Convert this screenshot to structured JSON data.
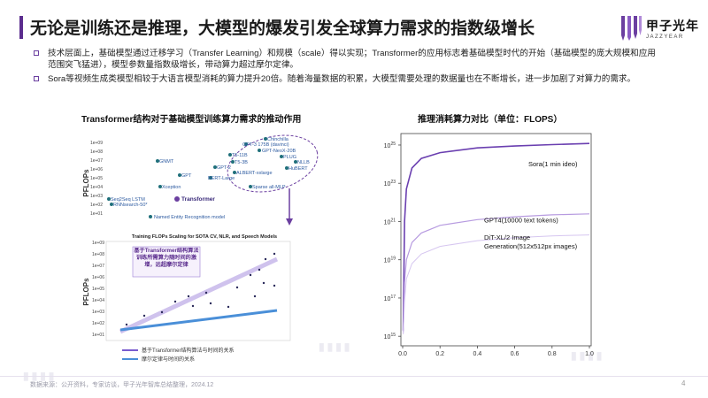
{
  "slide": {
    "title": "无论是训练还是推理，大模型的爆发引发全球算力需求的指数级增长",
    "logo_cn": "甲子光年",
    "logo_en": "JAZZYEAR",
    "bullets": [
      "技术层面上，基础模型通过迁移学习（Transfer Learning）和规模（scale）得以实现；Transformer的应用标志着基础模型时代的开始（基础模型的庞大规模和应用范围突飞猛进），模型参数量指数级增长，带动算力超过摩尔定律。",
      "Sora等视频生成类模型相较于大语言模型消耗的算力提升20倍。随着海量数据的积累，大模型需要处理的数据量也在不断增长，进一步加剧了对算力的需求。"
    ],
    "footer": "数据来源：公开资料，专家访谈，甲子光年智库总结整理，2024.12",
    "page_number": "4",
    "colors": {
      "accent": "#5b2d8e",
      "sora": "#6a3fb0",
      "gpt4": "#b79be0",
      "dit": "#d6c6f0",
      "transformer_trend": "#7a5ccf",
      "moore": "#4a8fd8"
    }
  },
  "left_chart": {
    "title": "Transformer结构对于基础模型训练算力需求的推动作用",
    "ylabel": "PFLOPs",
    "upper_yticks": [
      "1e+09",
      "1e+08",
      "1e+07",
      "1e+06",
      "1e+05",
      "1e+04",
      "1e+03",
      "1e+02",
      "1e+01",
      "1e+00"
    ],
    "upper_labels": [
      "Chinchilla",
      "GPT-3 175B (davinci)",
      "GPT-NeoX-20B",
      "T5-11B",
      "PLUG",
      "T5-3B",
      "NLLB",
      "GPT-2",
      "HuBERT",
      "ALBERT-xxlarge",
      "BERT-Large",
      "GNMT",
      "GPT",
      "Xception",
      "Seq2Seq LSTM",
      "RNNsearch-50*",
      "Transformer",
      "Sparse all-MLP",
      "Named Entity Recognition model"
    ],
    "lower_title": "Training FLOPs Scaling for SOTA CV, NLR, and Speech Models",
    "lower_yticks": [
      "1e+09",
      "1e+08",
      "1e+07",
      "1e+06",
      "1e+05",
      "1e+04",
      "1e+03",
      "1e+02",
      "1e+01",
      "1e+00"
    ],
    "annotation": "基于Transformer结构算法训练所需算力随时间的激增，远超摩尔定律",
    "legend": [
      "基于Transformer结构算法与时间的关系",
      "摩尔定律与时间的关系"
    ]
  },
  "right_chart": {
    "title": "推理消耗算力对比（单位：FLOPS）",
    "chart_data": {
      "type": "line",
      "xlim": [
        0,
        1.0
      ],
      "xticks": [
        "0.0",
        "0.2",
        "0.4",
        "0.6",
        "0.8",
        "1.0"
      ],
      "yscale": "log",
      "yticks": [
        "10^25",
        "10^23",
        "10^21",
        "10^19",
        "10^17",
        "10^15"
      ],
      "series": [
        {
          "name": "Sora(1 min ideo)",
          "x": [
            0.003,
            0.01,
            0.02,
            0.05,
            0.1,
            0.2,
            0.4,
            0.6,
            0.8,
            1.0
          ],
          "y_log10": [
            15.3,
            21.0,
            22.7,
            23.8,
            24.3,
            24.6,
            24.85,
            24.95,
            25.02,
            25.08
          ]
        },
        {
          "name": "GPT4(10000 text tokens)",
          "x": [
            0.003,
            0.01,
            0.02,
            0.05,
            0.1,
            0.2,
            0.4,
            0.6,
            0.8,
            1.0
          ],
          "y_log10": [
            15.2,
            17.8,
            19.0,
            19.9,
            20.4,
            20.8,
            21.1,
            21.25,
            21.35,
            21.4
          ]
        },
        {
          "name": "DiT-XL/2 Image Generation(512x512px images)",
          "x": [
            0.003,
            0.01,
            0.02,
            0.05,
            0.1,
            0.2,
            0.4,
            0.6,
            0.8,
            1.0
          ],
          "y_log10": [
            15.1,
            16.8,
            18.0,
            18.8,
            19.3,
            19.7,
            20.0,
            20.15,
            20.25,
            20.3
          ]
        }
      ]
    }
  }
}
